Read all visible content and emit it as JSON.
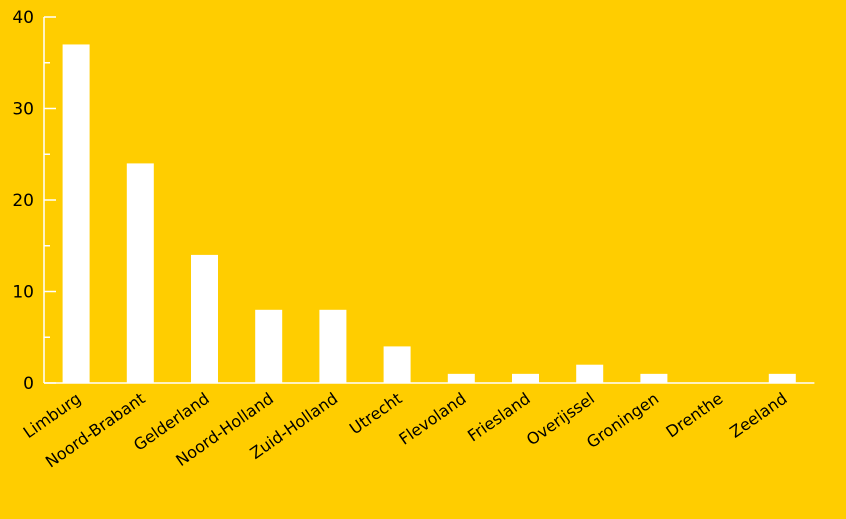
{
  "colors": {
    "background": "#FFCD00",
    "bar": "#FFFFFF",
    "axis": "#FFFFFF",
    "text": "#000000"
  },
  "chart_data": {
    "type": "bar",
    "title": "",
    "xlabel": "",
    "ylabel": "",
    "categories": [
      "Limburg",
      "Noord-Brabant",
      "Gelderland",
      "Noord-Holland",
      "Zuid-Holland",
      "Utrecht",
      "Flevoland",
      "Friesland",
      "Overijssel",
      "Groningen",
      "Drenthe",
      "Zeeland"
    ],
    "values": [
      37,
      24,
      14,
      8,
      8,
      4,
      1,
      1,
      2,
      1,
      0,
      1
    ],
    "ylim": [
      0,
      40
    ],
    "yticks": [
      0,
      10,
      20,
      30,
      40
    ],
    "grid": false,
    "legend": "none"
  }
}
